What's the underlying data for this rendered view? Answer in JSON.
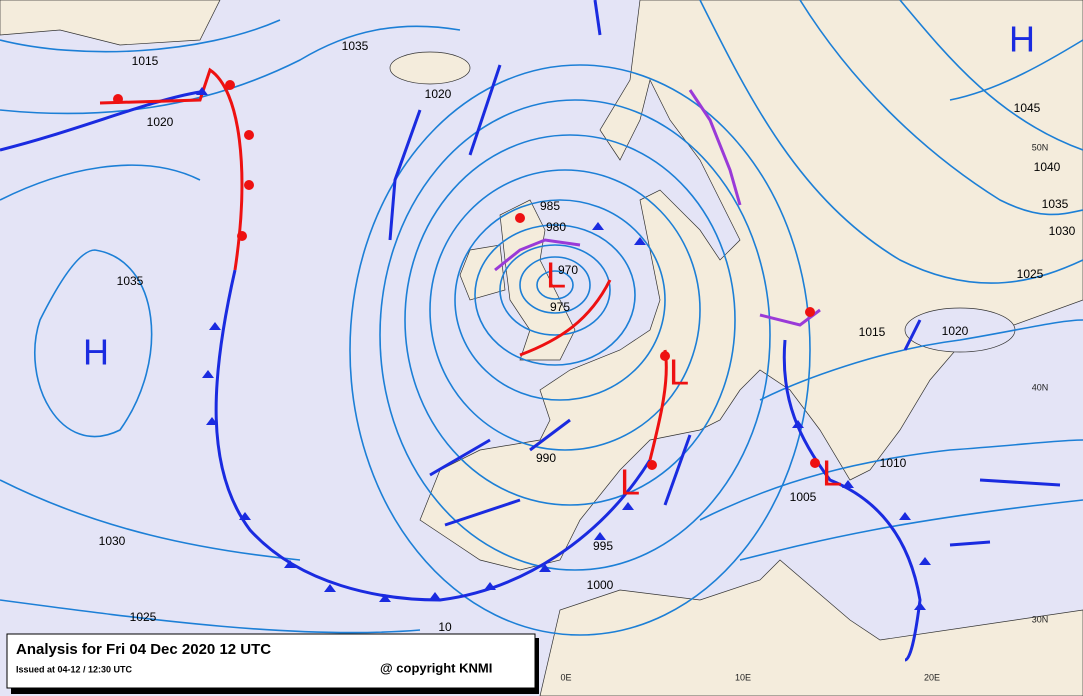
{
  "title": "Analysis for Fri 04 Dec 2020 12 UTC",
  "issued": "Issued at 04-12 / 12:30 UTC",
  "copyright": "@ copyright KNMI",
  "pressure_centers": [
    "H",
    "H",
    "L",
    "L",
    "L",
    "L"
  ],
  "isobar_labels": [
    "1015",
    "1035",
    "1020",
    "1020",
    "1035",
    "1030",
    "1025",
    "985",
    "980",
    "970",
    "975",
    "990",
    "995",
    "1000",
    "1005",
    "1010",
    "1015",
    "1020",
    "1025",
    "1030",
    "1035",
    "1040",
    "1045",
    "10"
  ],
  "grid_labels": [
    "50N",
    "40N",
    "30N",
    "0E",
    "10E",
    "20E"
  ]
}
